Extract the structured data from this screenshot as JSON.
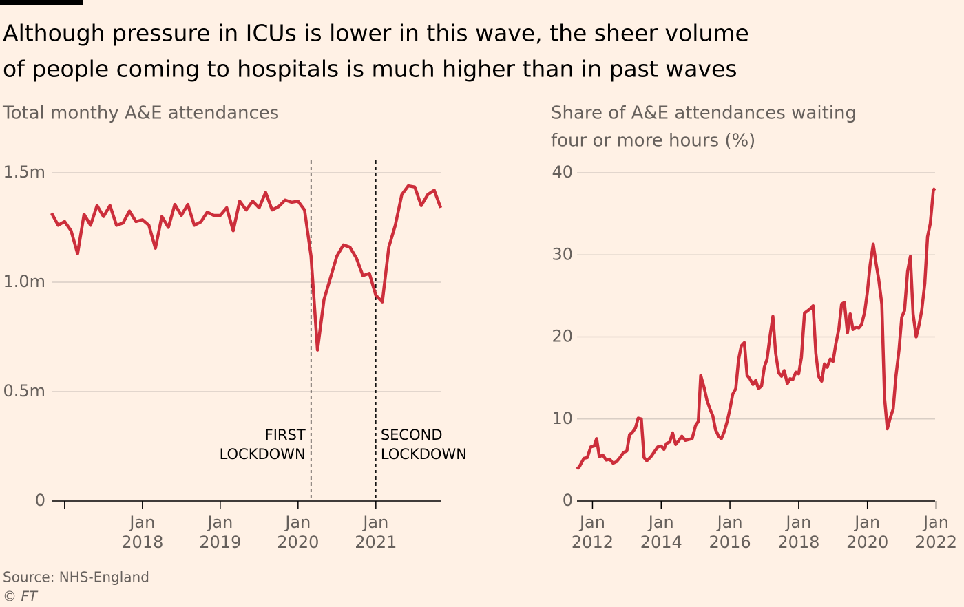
{
  "title": [
    "Although pressure in ICUs is lower in this wave, the sheer volume",
    "of people coming to hospitals is much higher than in past waves"
  ],
  "source": "Source: NHS-England",
  "credit": "© FT",
  "chart_data": [
    {
      "type": "line",
      "subtitle": [
        "Total monthy A&E attendances"
      ],
      "color": "#cc2e3b",
      "grid": true,
      "x": [
        "2016-11",
        "2016-12",
        "2017-01",
        "2017-02",
        "2017-03",
        "2017-04",
        "2017-05",
        "2017-06",
        "2017-07",
        "2017-08",
        "2017-09",
        "2017-10",
        "2017-11",
        "2017-12",
        "2018-01",
        "2018-02",
        "2018-03",
        "2018-04",
        "2018-05",
        "2018-06",
        "2018-07",
        "2018-08",
        "2018-09",
        "2018-10",
        "2018-11",
        "2018-12",
        "2019-01",
        "2019-02",
        "2019-03",
        "2019-04",
        "2019-05",
        "2019-06",
        "2019-07",
        "2019-08",
        "2019-09",
        "2019-10",
        "2019-11",
        "2019-12",
        "2020-01",
        "2020-02",
        "2020-03",
        "2020-04",
        "2020-05",
        "2020-06",
        "2020-07",
        "2020-08",
        "2020-09",
        "2020-10",
        "2020-11",
        "2020-12",
        "2021-01",
        "2021-02",
        "2021-03",
        "2021-04",
        "2021-05",
        "2021-06",
        "2021-07",
        "2021-08",
        "2021-09",
        "2021-10",
        "2021-11"
      ],
      "values": [
        1.315,
        1.26,
        1.277,
        1.235,
        1.13,
        1.31,
        1.26,
        1.35,
        1.3,
        1.35,
        1.26,
        1.27,
        1.325,
        1.277,
        1.285,
        1.26,
        1.155,
        1.3,
        1.25,
        1.355,
        1.305,
        1.355,
        1.26,
        1.275,
        1.32,
        1.305,
        1.305,
        1.34,
        1.235,
        1.37,
        1.33,
        1.37,
        1.34,
        1.41,
        1.33,
        1.345,
        1.375,
        1.365,
        1.37,
        1.33,
        1.12,
        0.69,
        0.92,
        1.02,
        1.12,
        1.17,
        1.16,
        1.11,
        1.03,
        1.04,
        0.94,
        0.91,
        1.16,
        1.26,
        1.4,
        1.44,
        1.435,
        1.35,
        1.4,
        1.42,
        1.34
      ],
      "xlim": [
        "2016-11",
        "2021-11"
      ],
      "xticks": [
        {
          "value": "2017-01"
        },
        {
          "value": "2018-01",
          "label": "Jan",
          "sublabel": "2018"
        },
        {
          "value": "2019-01",
          "label": "Jan",
          "sublabel": "2019"
        },
        {
          "value": "2020-01",
          "label": "Jan",
          "sublabel": "2020"
        },
        {
          "value": "2021-01",
          "label": "Jan",
          "sublabel": "2021"
        }
      ],
      "ylim": [
        0,
        1.5
      ],
      "yticks": [
        0,
        {
          "value": 0.5,
          "label": "0.5m"
        },
        {
          "value": 1,
          "label": "1.0m"
        },
        {
          "value": 1.5,
          "label": "1.5m"
        }
      ],
      "annotations": [
        {
          "x": "2020-03",
          "lines": [
            "FIRST",
            "LOCKDOWN"
          ],
          "align": "left"
        },
        {
          "x": "2021-01",
          "lines": [
            "SECOND",
            "LOCKDOWN"
          ],
          "align": "right"
        }
      ]
    },
    {
      "type": "line",
      "subtitle": [
        "Share of A&E attendances waiting",
        "four or more hours (%)"
      ],
      "color": "#cc2e3b",
      "grid": true,
      "x": [
        2011.55,
        2011.62,
        2011.75,
        2011.85,
        2011.95,
        2012.05,
        2012.12,
        2012.2,
        2012.3,
        2012.4,
        2012.5,
        2012.6,
        2012.7,
        2012.8,
        2012.9,
        2013.0,
        2013.08,
        2013.15,
        2013.25,
        2013.33,
        2013.42,
        2013.5,
        2013.58,
        2013.7,
        2013.8,
        2013.9,
        2014.0,
        2014.08,
        2014.15,
        2014.25,
        2014.33,
        2014.42,
        2014.5,
        2014.6,
        2014.7,
        2014.8,
        2014.9,
        2015.0,
        2015.08,
        2015.15,
        2015.25,
        2015.33,
        2015.42,
        2015.5,
        2015.58,
        2015.67,
        2015.75,
        2015.83,
        2015.92,
        2016.0,
        2016.08,
        2016.17,
        2016.25,
        2016.33,
        2016.42,
        2016.5,
        2016.58,
        2016.67,
        2016.75,
        2016.83,
        2016.92,
        2017.0,
        2017.08,
        2017.17,
        2017.25,
        2017.33,
        2017.42,
        2017.5,
        2017.58,
        2017.67,
        2017.75,
        2017.83,
        2017.92,
        2018.0,
        2018.08,
        2018.17,
        2018.33,
        2018.42,
        2018.5,
        2018.58,
        2018.67,
        2018.75,
        2018.83,
        2018.92,
        2019.0,
        2019.08,
        2019.17,
        2019.25,
        2019.33,
        2019.42,
        2019.5,
        2019.58,
        2019.67,
        2019.75,
        2019.83,
        2019.92,
        2020.0,
        2020.08,
        2020.17,
        2020.25,
        2020.33,
        2020.42,
        2020.5,
        2020.58,
        2020.67,
        2020.75,
        2020.83,
        2020.92,
        2021.0,
        2021.08,
        2021.17,
        2021.25,
        2021.33,
        2021.42,
        2021.5,
        2021.58,
        2021.67,
        2021.75,
        2021.83,
        2021.92,
        2021.97
      ],
      "values": [
        3.9,
        4.2,
        5.2,
        5.3,
        6.6,
        6.7,
        7.6,
        5.4,
        5.6,
        5.0,
        5.1,
        4.6,
        4.8,
        5.3,
        5.9,
        6.1,
        8.1,
        8.3,
        8.9,
        10.1,
        10.0,
        5.3,
        4.9,
        5.4,
        6.0,
        6.6,
        6.7,
        6.3,
        7.0,
        7.2,
        8.3,
        6.9,
        7.3,
        7.9,
        7.4,
        7.5,
        7.6,
        9.2,
        9.7,
        15.3,
        13.8,
        12.3,
        11.2,
        10.4,
        8.7,
        7.9,
        7.6,
        8.4,
        9.7,
        11.2,
        13.0,
        13.7,
        17.2,
        18.9,
        19.3,
        15.3,
        14.9,
        14.2,
        14.7,
        13.7,
        14.0,
        16.3,
        17.3,
        20.2,
        22.5,
        18.0,
        15.6,
        15.2,
        15.9,
        14.3,
        14.9,
        14.8,
        15.7,
        15.5,
        17.5,
        22.9,
        23.4,
        23.8,
        18.0,
        15.2,
        14.6,
        16.7,
        16.3,
        17.3,
        17.0,
        19.1,
        21.0,
        24.0,
        24.2,
        20.5,
        22.8,
        20.9,
        21.2,
        21.1,
        21.5,
        23.0,
        25.5,
        28.8,
        31.3,
        29.0,
        27.0,
        24.0,
        12.5,
        8.8,
        10.2,
        11.2,
        15.2,
        18.4,
        22.4,
        23.2,
        28.0,
        29.8,
        22.8,
        20.0,
        21.4,
        23.2,
        26.5,
        32.2,
        33.8,
        37.9,
        38.1
      ],
      "xlim": [
        2011.55,
        2021.97
      ],
      "xticks": [
        {
          "value": 2012,
          "label": "Jan",
          "sublabel": "2012"
        },
        {
          "value": 2014,
          "label": "Jan",
          "sublabel": "2014"
        },
        {
          "value": 2016,
          "label": "Jan",
          "sublabel": "2016"
        },
        {
          "value": 2018,
          "label": "Jan",
          "sublabel": "2018"
        },
        {
          "value": 2020,
          "label": "Jan",
          "sublabel": "2020"
        },
        {
          "value": 2022,
          "label": "Jan",
          "sublabel": "2022"
        }
      ],
      "ylim": [
        0,
        40
      ],
      "yticks": [
        0,
        10,
        20,
        30,
        40
      ]
    }
  ]
}
